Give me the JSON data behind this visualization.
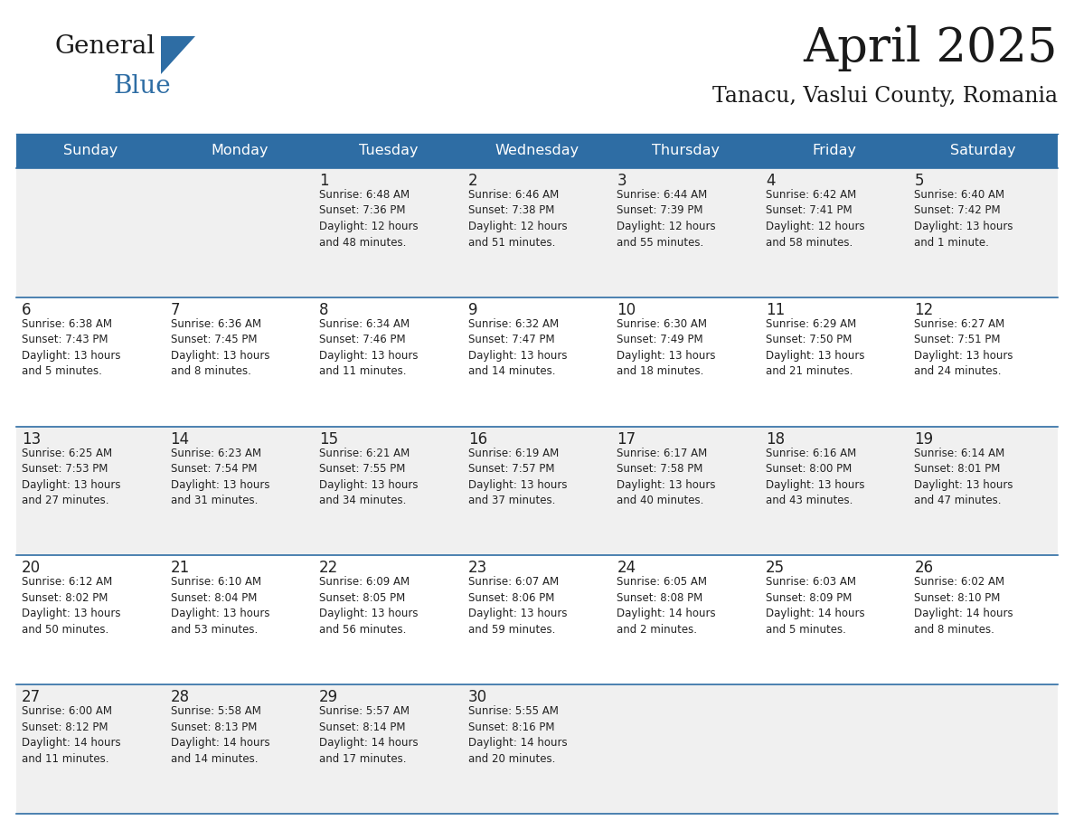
{
  "title": "April 2025",
  "subtitle": "Tanacu, Vaslui County, Romania",
  "header_color": "#2E6DA4",
  "header_text_color": "#FFFFFF",
  "cell_bg_white": "#FFFFFF",
  "cell_bg_gray": "#F0F0F0",
  "text_color": "#222222",
  "border_color": "#2E6DA4",
  "days_of_week": [
    "Sunday",
    "Monday",
    "Tuesday",
    "Wednesday",
    "Thursday",
    "Friday",
    "Saturday"
  ],
  "week_bg": [
    "#F0F0F0",
    "#FFFFFF",
    "#F0F0F0",
    "#FFFFFF",
    "#F0F0F0"
  ],
  "weeks": [
    [
      {
        "day": "",
        "info": ""
      },
      {
        "day": "",
        "info": ""
      },
      {
        "day": "1",
        "info": "Sunrise: 6:48 AM\nSunset: 7:36 PM\nDaylight: 12 hours\nand 48 minutes."
      },
      {
        "day": "2",
        "info": "Sunrise: 6:46 AM\nSunset: 7:38 PM\nDaylight: 12 hours\nand 51 minutes."
      },
      {
        "day": "3",
        "info": "Sunrise: 6:44 AM\nSunset: 7:39 PM\nDaylight: 12 hours\nand 55 minutes."
      },
      {
        "day": "4",
        "info": "Sunrise: 6:42 AM\nSunset: 7:41 PM\nDaylight: 12 hours\nand 58 minutes."
      },
      {
        "day": "5",
        "info": "Sunrise: 6:40 AM\nSunset: 7:42 PM\nDaylight: 13 hours\nand 1 minute."
      }
    ],
    [
      {
        "day": "6",
        "info": "Sunrise: 6:38 AM\nSunset: 7:43 PM\nDaylight: 13 hours\nand 5 minutes."
      },
      {
        "day": "7",
        "info": "Sunrise: 6:36 AM\nSunset: 7:45 PM\nDaylight: 13 hours\nand 8 minutes."
      },
      {
        "day": "8",
        "info": "Sunrise: 6:34 AM\nSunset: 7:46 PM\nDaylight: 13 hours\nand 11 minutes."
      },
      {
        "day": "9",
        "info": "Sunrise: 6:32 AM\nSunset: 7:47 PM\nDaylight: 13 hours\nand 14 minutes."
      },
      {
        "day": "10",
        "info": "Sunrise: 6:30 AM\nSunset: 7:49 PM\nDaylight: 13 hours\nand 18 minutes."
      },
      {
        "day": "11",
        "info": "Sunrise: 6:29 AM\nSunset: 7:50 PM\nDaylight: 13 hours\nand 21 minutes."
      },
      {
        "day": "12",
        "info": "Sunrise: 6:27 AM\nSunset: 7:51 PM\nDaylight: 13 hours\nand 24 minutes."
      }
    ],
    [
      {
        "day": "13",
        "info": "Sunrise: 6:25 AM\nSunset: 7:53 PM\nDaylight: 13 hours\nand 27 minutes."
      },
      {
        "day": "14",
        "info": "Sunrise: 6:23 AM\nSunset: 7:54 PM\nDaylight: 13 hours\nand 31 minutes."
      },
      {
        "day": "15",
        "info": "Sunrise: 6:21 AM\nSunset: 7:55 PM\nDaylight: 13 hours\nand 34 minutes."
      },
      {
        "day": "16",
        "info": "Sunrise: 6:19 AM\nSunset: 7:57 PM\nDaylight: 13 hours\nand 37 minutes."
      },
      {
        "day": "17",
        "info": "Sunrise: 6:17 AM\nSunset: 7:58 PM\nDaylight: 13 hours\nand 40 minutes."
      },
      {
        "day": "18",
        "info": "Sunrise: 6:16 AM\nSunset: 8:00 PM\nDaylight: 13 hours\nand 43 minutes."
      },
      {
        "day": "19",
        "info": "Sunrise: 6:14 AM\nSunset: 8:01 PM\nDaylight: 13 hours\nand 47 minutes."
      }
    ],
    [
      {
        "day": "20",
        "info": "Sunrise: 6:12 AM\nSunset: 8:02 PM\nDaylight: 13 hours\nand 50 minutes."
      },
      {
        "day": "21",
        "info": "Sunrise: 6:10 AM\nSunset: 8:04 PM\nDaylight: 13 hours\nand 53 minutes."
      },
      {
        "day": "22",
        "info": "Sunrise: 6:09 AM\nSunset: 8:05 PM\nDaylight: 13 hours\nand 56 minutes."
      },
      {
        "day": "23",
        "info": "Sunrise: 6:07 AM\nSunset: 8:06 PM\nDaylight: 13 hours\nand 59 minutes."
      },
      {
        "day": "24",
        "info": "Sunrise: 6:05 AM\nSunset: 8:08 PM\nDaylight: 14 hours\nand 2 minutes."
      },
      {
        "day": "25",
        "info": "Sunrise: 6:03 AM\nSunset: 8:09 PM\nDaylight: 14 hours\nand 5 minutes."
      },
      {
        "day": "26",
        "info": "Sunrise: 6:02 AM\nSunset: 8:10 PM\nDaylight: 14 hours\nand 8 minutes."
      }
    ],
    [
      {
        "day": "27",
        "info": "Sunrise: 6:00 AM\nSunset: 8:12 PM\nDaylight: 14 hours\nand 11 minutes."
      },
      {
        "day": "28",
        "info": "Sunrise: 5:58 AM\nSunset: 8:13 PM\nDaylight: 14 hours\nand 14 minutes."
      },
      {
        "day": "29",
        "info": "Sunrise: 5:57 AM\nSunset: 8:14 PM\nDaylight: 14 hours\nand 17 minutes."
      },
      {
        "day": "30",
        "info": "Sunrise: 5:55 AM\nSunset: 8:16 PM\nDaylight: 14 hours\nand 20 minutes."
      },
      {
        "day": "",
        "info": ""
      },
      {
        "day": "",
        "info": ""
      },
      {
        "day": "",
        "info": ""
      }
    ]
  ]
}
